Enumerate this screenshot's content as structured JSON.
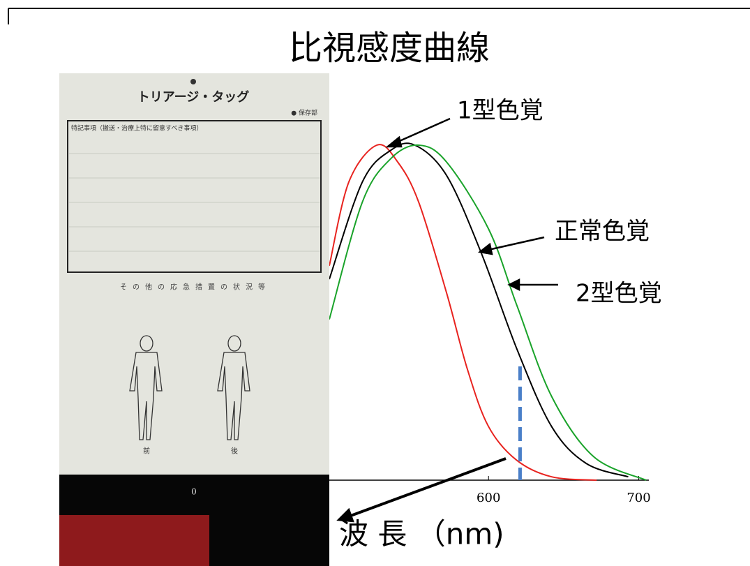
{
  "chart_data": {
    "type": "line",
    "title": "比視感度曲線",
    "x_label": "波 長 （nm)",
    "xlim": [
      494,
      720
    ],
    "ylim": [
      0,
      1
    ],
    "xticks": [
      600,
      700
    ],
    "series": [
      {
        "name": "1型色覚",
        "color": "#e8231f",
        "x": [
          494,
          507,
          525.6,
          539.5,
          553.5,
          572,
          586,
          600,
          618.6,
          642,
          672
        ],
        "values": [
          0.64,
          0.89,
          1.0,
          0.95,
          0.83,
          0.56,
          0.33,
          0.16,
          0.06,
          0.01,
          0.0
        ]
      },
      {
        "name": "正常色覚",
        "color": "#000000",
        "x": [
          494,
          516,
          535,
          551,
          572,
          595,
          619,
          642,
          665,
          693
        ],
        "values": [
          0.6,
          0.89,
          0.985,
          1.0,
          0.91,
          0.68,
          0.39,
          0.16,
          0.05,
          0.01
        ]
      },
      {
        "name": "2型色覚",
        "color": "#1aa32a",
        "x": [
          494,
          516,
          535,
          553.5,
          572,
          600,
          619,
          642,
          670,
          705
        ],
        "values": [
          0.48,
          0.83,
          0.96,
          1.0,
          0.95,
          0.75,
          0.52,
          0.25,
          0.07,
          0.0
        ]
      }
    ],
    "vline": {
      "x": 621,
      "color": "#4a7fc8"
    }
  },
  "photo": {
    "title": "トリアージ・タッグ",
    "corner": "● 保存部",
    "notes_heading": "特記事項（搬送・治療上特に留意すべき事項）",
    "other": "その他の応急措置の状況等",
    "front": "前",
    "back": "後",
    "bottom": "0"
  }
}
